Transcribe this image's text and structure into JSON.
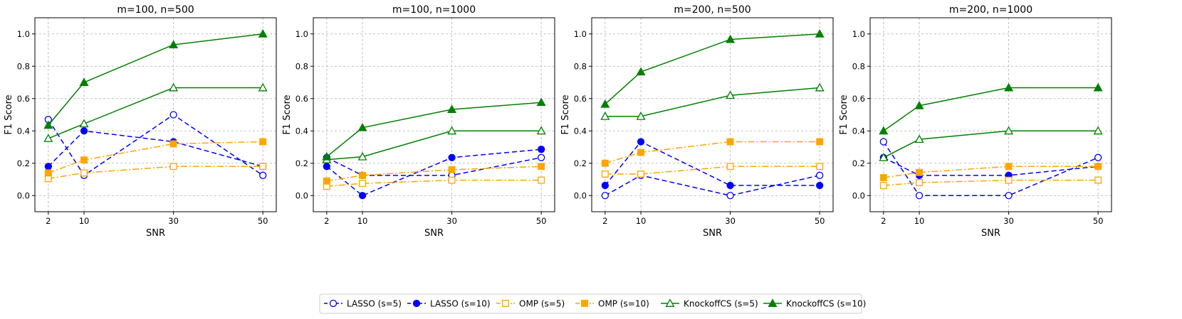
{
  "chart_data": {
    "type": "line",
    "xlabel": "SNR",
    "ylabel": "F1 Score",
    "x": [
      2,
      10,
      30,
      50
    ],
    "xlim": [
      -1,
      53
    ],
    "ylim": [
      -0.1,
      1.1
    ],
    "yticks": [
      "0.0",
      "0.2",
      "0.4",
      "0.6",
      "0.8",
      "1.0"
    ],
    "xticks": [
      "2",
      "10",
      "30",
      "50"
    ],
    "grid": true,
    "legend_position": "bottom-center",
    "series_styles": [
      {
        "name": "LASSO (s=5)",
        "color": "#0000ff",
        "dash": "dashed",
        "marker": "circle",
        "filled": false
      },
      {
        "name": "LASSO (s=10)",
        "color": "#0000ff",
        "dash": "dashed",
        "marker": "circle",
        "filled": true
      },
      {
        "name": "OMP (s=5)",
        "color": "#ffa500",
        "dash": "dashdot",
        "marker": "square",
        "filled": false
      },
      {
        "name": "OMP (s=10)",
        "color": "#ffa500",
        "dash": "dashdot",
        "marker": "square",
        "filled": true
      },
      {
        "name": "KnockoffCS (s=5)",
        "color": "#008000",
        "dash": "solid",
        "marker": "triangle",
        "filled": false
      },
      {
        "name": "KnockoffCS (s=10)",
        "color": "#008000",
        "dash": "solid",
        "marker": "triangle",
        "filled": true
      }
    ],
    "panels": [
      {
        "title": "m=100, n=500",
        "series": [
          {
            "name": "LASSO (s=5)",
            "values": [
              0.47,
              0.125,
              0.5,
              0.125
            ]
          },
          {
            "name": "LASSO (s=10)",
            "values": [
              0.18,
              0.4,
              0.333,
              0.18
            ]
          },
          {
            "name": "OMP (s=5)",
            "values": [
              0.105,
              0.14,
              0.18,
              0.18
            ]
          },
          {
            "name": "OMP (s=10)",
            "values": [
              0.14,
              0.22,
              0.32,
              0.333
            ]
          },
          {
            "name": "KnockoffCS (s=5)",
            "values": [
              0.353,
              0.444,
              0.667,
              0.667
            ]
          },
          {
            "name": "KnockoffCS (s=10)",
            "values": [
              0.435,
              0.7,
              0.933,
              1.0
            ]
          }
        ]
      },
      {
        "title": "m=100, n=1000",
        "series": [
          {
            "name": "LASSO (s=5)",
            "values": [
              0.235,
              0.125,
              0.125,
              0.235
            ]
          },
          {
            "name": "LASSO (s=10)",
            "values": [
              0.18,
              0.0,
              0.235,
              0.286
            ]
          },
          {
            "name": "OMP (s=5)",
            "values": [
              0.057,
              0.075,
              0.095,
              0.095
            ]
          },
          {
            "name": "OMP (s=10)",
            "values": [
              0.09,
              0.125,
              0.16,
              0.18
            ]
          },
          {
            "name": "KnockoffCS (s=5)",
            "values": [
              0.222,
              0.24,
              0.4,
              0.4
            ]
          },
          {
            "name": "KnockoffCS (s=10)",
            "values": [
              0.24,
              0.42,
              0.533,
              0.576
            ]
          }
        ]
      },
      {
        "title": "m=200, n=500",
        "series": [
          {
            "name": "LASSO (s=5)",
            "values": [
              0.0,
              0.125,
              0.0,
              0.125
            ]
          },
          {
            "name": "LASSO (s=10)",
            "values": [
              0.0625,
              0.333,
              0.0625,
              0.0625
            ]
          },
          {
            "name": "OMP (s=5)",
            "values": [
              0.133,
              0.133,
              0.18,
              0.18
            ]
          },
          {
            "name": "OMP (s=10)",
            "values": [
              0.2,
              0.267,
              0.333,
              0.333
            ]
          },
          {
            "name": "KnockoffCS (s=5)",
            "values": [
              0.49,
              0.49,
              0.62,
              0.667
            ]
          },
          {
            "name": "KnockoffCS (s=10)",
            "values": [
              0.565,
              0.765,
              0.966,
              1.0
            ]
          }
        ]
      },
      {
        "title": "m=200, n=1000",
        "series": [
          {
            "name": "LASSO (s=5)",
            "values": [
              0.333,
              0.0,
              0.0,
              0.235
            ]
          },
          {
            "name": "LASSO (s=10)",
            "values": [
              0.235,
              0.125,
              0.125,
              0.18
            ]
          },
          {
            "name": "OMP (s=5)",
            "values": [
              0.062,
              0.08,
              0.095,
              0.095
            ]
          },
          {
            "name": "OMP (s=10)",
            "values": [
              0.111,
              0.143,
              0.18,
              0.18
            ]
          },
          {
            "name": "KnockoffCS (s=5)",
            "values": [
              0.235,
              0.348,
              0.4,
              0.4
            ]
          },
          {
            "name": "KnockoffCS (s=10)",
            "values": [
              0.4,
              0.556,
              0.667,
              0.667
            ]
          }
        ]
      }
    ]
  }
}
